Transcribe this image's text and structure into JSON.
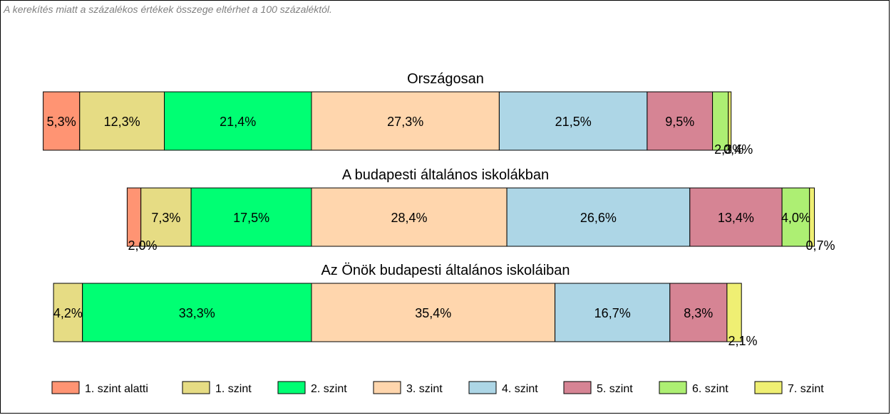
{
  "footnote": "A kerekítés miatt a  százalékos értékek összege eltérhet a 100 százaléktól.",
  "chart_data": {
    "type": "bar",
    "orientation": "horizontal-stacked",
    "levels": [
      "1. szint alatti",
      "1. szint",
      "2. szint",
      "3. szint",
      "4. szint",
      "5. szint",
      "6. szint",
      "7. szint"
    ],
    "colors": [
      "#ff9473",
      "#e6dc84",
      "#00ff73",
      "#ffd6ad",
      "#add6e6",
      "#d68494",
      "#adef73",
      "#efef73"
    ],
    "bars": [
      {
        "name": "Országosan",
        "values": [
          5.3,
          12.3,
          21.4,
          27.3,
          21.5,
          9.5,
          2.3,
          0.4
        ],
        "labels": [
          "5,3%",
          "12,3%",
          "21,4%",
          "27,3%",
          "21,5%",
          "9,5%",
          "2,3%",
          "0,4%"
        ]
      },
      {
        "name": "A budapesti általános iskolákban",
        "values": [
          2.0,
          7.3,
          17.5,
          28.4,
          26.6,
          13.4,
          4.0,
          0.7
        ],
        "labels": [
          "2,0%",
          "7,3%",
          "17,5%",
          "28,4%",
          "26,6%",
          "13,4%",
          "4,0%",
          "0,7%"
        ]
      },
      {
        "name": "Az Önök budapesti általános iskoláiban",
        "values": [
          0,
          4.2,
          33.3,
          35.4,
          16.7,
          8.3,
          0,
          2.1
        ],
        "labels": [
          "",
          "4,2%",
          "33,3%",
          "35,4%",
          "16,7%",
          "8,3%",
          "",
          "2,1%"
        ]
      }
    ],
    "alignment": "centered on the boundary between 2. szint and 3. szint",
    "legend_position": "bottom"
  }
}
